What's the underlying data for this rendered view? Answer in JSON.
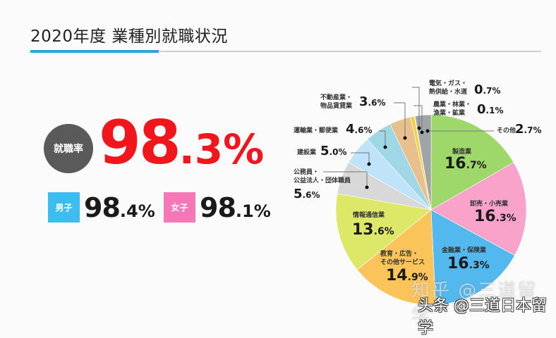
{
  "header": {
    "title": "2020年度 業種別就職状況"
  },
  "summary": {
    "rate_label": "就職率",
    "overall_int": "98",
    "overall_dec": ".3%",
    "male_label": "男子",
    "male_int": "98",
    "male_dec": ".4%",
    "female_label": "女子",
    "female_int": "98",
    "female_dec": ".1%",
    "colors": {
      "overall": "#f0161c",
      "male_box": "#3bbdf0",
      "female_box": "#f577b8",
      "rate_circle": "#5a5a5a"
    }
  },
  "watermark": {
    "line1": "知乎 @三道留学",
    "line2": "头条 @三道日本留学"
  },
  "chart_data": {
    "type": "pie",
    "title": "2020年度 業種別就職状況",
    "start_angle": "12 o'clock",
    "direction": "clockwise",
    "unit": "%",
    "categories": [
      "製造業",
      "卸売・小売業",
      "金融業・保険業",
      "教育・広告・その他サービス",
      "情報通信業",
      "公務員・公益法人",
      "建設業",
      "運輸業・郵便業",
      "不動産業・物品賃貸業",
      "電気・ガス・熱供給・水道",
      "農業・林業・漁業・鉱業",
      "その他"
    ],
    "values": [
      16.7,
      16.3,
      16.3,
      14.9,
      13.6,
      5.6,
      5.0,
      4.6,
      3.6,
      0.7,
      0.1,
      2.7
    ],
    "colors": [
      "#9fd86a",
      "#f9a3cb",
      "#52b8ee",
      "#fbc45a",
      "#dde869",
      "#d8d8d8",
      "#bfe3f8",
      "#9fd7e4",
      "#e8c08e",
      "#f2d24a",
      "#c9c9a0",
      "#9ea4a8"
    ],
    "labels_display": [
      {
        "name": "製造業",
        "int": "16",
        "dec": ".7%"
      },
      {
        "name": "卸売・小売業",
        "int": "16",
        "dec": ".3%"
      },
      {
        "name": "金融業・保険業",
        "int": "16",
        "dec": ".3%"
      },
      {
        "name1": "教育・広告・",
        "name2": "その他サービス",
        "int": "14",
        "dec": ".9%"
      },
      {
        "name": "情報通信業",
        "int": "13",
        "dec": ".6%"
      },
      {
        "name1": "公務員・",
        "name2": "公益法人・団体職員",
        "int": "5",
        "dec": ".6%"
      },
      {
        "name": "建設業",
        "int": "5",
        "dec": ".0%"
      },
      {
        "name": "運輸業・郵便業",
        "int": "4",
        "dec": ".6%"
      },
      {
        "name1": "不動産業・",
        "name2": "物品賃貸業",
        "int": "3",
        "dec": ".6%"
      },
      {
        "name1": "電気・ガス・",
        "name2": "熱供給・水道",
        "int": "0",
        "dec": ".7%"
      },
      {
        "name1": "農業・林業・",
        "name2": "漁業・鉱業",
        "int": "0",
        "dec": ".1%"
      },
      {
        "name": "その他",
        "int": "2",
        "dec": ".7%"
      }
    ],
    "legend": "none (direct labels with leader lines)"
  }
}
